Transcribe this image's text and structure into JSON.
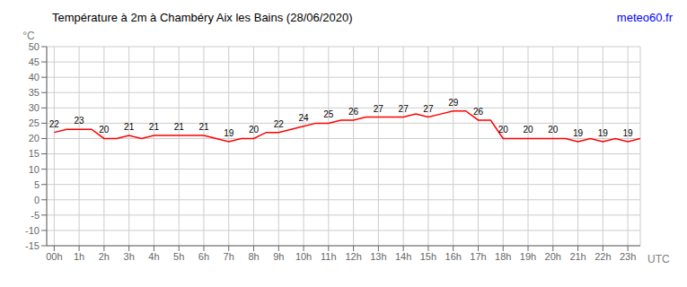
{
  "chart_data": {
    "type": "line",
    "title": "Température à 2m à Chambéry Aix les Bains (28/06/2020)",
    "ylabel": "°C",
    "xlabel": "UTC",
    "annotations": [
      {
        "text": "meteo60.fr",
        "color": "blue"
      }
    ],
    "x": [
      0,
      0.5,
      1,
      1.5,
      2,
      2.5,
      3,
      3.5,
      4,
      4.5,
      5,
      5.5,
      6,
      6.5,
      7,
      7.5,
      8,
      8.5,
      9,
      9.5,
      10,
      10.5,
      11,
      11.5,
      12,
      12.5,
      13,
      13.5,
      14,
      14.5,
      15,
      15.5,
      16,
      16.5,
      17,
      17.5,
      18,
      18.5,
      19,
      19.5,
      20,
      20.5,
      21,
      21.5,
      22,
      22.5,
      23,
      23.5
    ],
    "values": [
      22,
      23,
      23,
      23,
      20,
      20,
      21,
      20,
      21,
      21,
      21,
      21,
      21,
      20,
      19,
      20,
      20,
      22,
      22,
      23,
      24,
      25,
      25,
      26,
      26,
      27,
      27,
      27,
      27,
      28,
      27,
      28,
      29,
      29,
      26,
      26,
      20,
      20,
      20,
      20,
      20,
      20,
      19,
      20,
      19,
      20,
      19,
      20
    ],
    "value_labels": [
      "22",
      null,
      "23",
      null,
      "20",
      null,
      "21",
      null,
      "21",
      null,
      "21",
      null,
      "21",
      null,
      "19",
      null,
      "20",
      null,
      "22",
      null,
      "24",
      null,
      "25",
      null,
      "26",
      null,
      "27",
      null,
      "27",
      null,
      "27",
      null,
      "29",
      null,
      "26",
      null,
      "20",
      null,
      "20",
      null,
      "20",
      null,
      "19",
      null,
      "19",
      null,
      "19",
      null
    ],
    "data_labels": true,
    "color": "#ff0000",
    "xlim": [
      -0.3,
      23.5
    ],
    "xticks": [
      {
        "value": 0,
        "label": "00h"
      },
      {
        "value": 1,
        "label": "1h"
      },
      {
        "value": 2,
        "label": "2h"
      },
      {
        "value": 3,
        "label": "3h"
      },
      {
        "value": 4,
        "label": "4h"
      },
      {
        "value": 5,
        "label": "5h"
      },
      {
        "value": 6,
        "label": "6h"
      },
      {
        "value": 7,
        "label": "7h"
      },
      {
        "value": 8,
        "label": "8h"
      },
      {
        "value": 9,
        "label": "9h"
      },
      {
        "value": 10,
        "label": "10h"
      },
      {
        "value": 11,
        "label": "11h"
      },
      {
        "value": 12,
        "label": "12h"
      },
      {
        "value": 13,
        "label": "13h"
      },
      {
        "value": 14,
        "label": "14h"
      },
      {
        "value": 15,
        "label": "15h"
      },
      {
        "value": 16,
        "label": "16h"
      },
      {
        "value": 17,
        "label": "17h"
      },
      {
        "value": 18,
        "label": "18h"
      },
      {
        "value": 19,
        "label": "19h"
      },
      {
        "value": 20,
        "label": "20h"
      },
      {
        "value": 21,
        "label": "21h"
      },
      {
        "value": 22,
        "label": "22h"
      },
      {
        "value": 23,
        "label": "23h"
      }
    ],
    "ylim": [
      -15,
      50
    ],
    "yticks": [
      -15,
      -10,
      -5,
      0,
      5,
      10,
      15,
      20,
      25,
      30,
      35,
      40,
      45,
      50
    ],
    "grid": true
  }
}
